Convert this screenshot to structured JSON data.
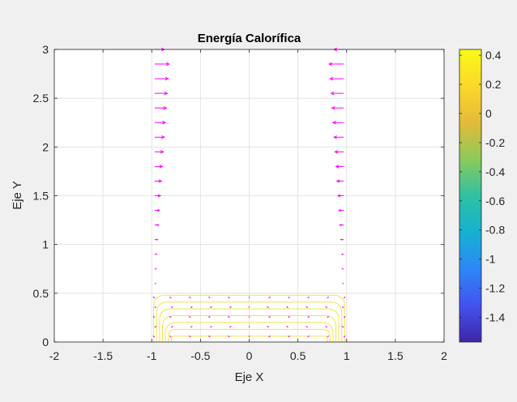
{
  "chart_data": {
    "type": "contour",
    "title": "Energía Calorífica",
    "xlabel": "Eje X",
    "ylabel": "Eje Y",
    "xlim": [
      -2,
      2
    ],
    "ylim": [
      0,
      3
    ],
    "xticks": [
      -2,
      -1.5,
      -1,
      -0.5,
      0,
      0.5,
      1,
      1.5,
      2
    ],
    "xtick_labels": [
      "-2",
      "-1.5",
      "-1",
      "-0.5",
      "0",
      "0.5",
      "1",
      "1.5",
      "2"
    ],
    "yticks": [
      0,
      0.5,
      1,
      1.5,
      2,
      2.5,
      3
    ],
    "ytick_labels": [
      "0",
      "0.5",
      "1",
      "1.5",
      "2",
      "2.5",
      "3"
    ],
    "grid": true,
    "contour_levels": [
      {
        "half_width": 0.98,
        "height": 0.48
      },
      {
        "half_width": 0.95,
        "height": 0.41
      },
      {
        "half_width": 0.92,
        "height": 0.34
      },
      {
        "half_width": 0.89,
        "height": 0.27
      },
      {
        "half_width": 0.86,
        "height": 0.2
      },
      {
        "half_width": 0.83,
        "height": 0.13
      },
      {
        "half_width": 0.8,
        "height": 0.06
      }
    ],
    "contour_color": "#f2e64a",
    "quiver_color": "#ff00ff",
    "quiver": {
      "left_x": -0.97,
      "right_x": 0.97,
      "y_values": [
        3.0,
        2.85,
        2.7,
        2.55,
        2.4,
        2.25,
        2.1,
        1.95,
        1.8,
        1.65,
        1.5,
        1.35,
        1.2,
        1.05,
        0.9,
        0.75,
        0.6
      ],
      "u_values": [
        0.1,
        0.15,
        0.14,
        0.13,
        0.12,
        0.11,
        0.1,
        0.09,
        0.08,
        0.07,
        0.06,
        0.05,
        0.04,
        0.03,
        0.02,
        0.015,
        0.01
      ],
      "bottom_rows_y": [
        0.05,
        0.15,
        0.25,
        0.35,
        0.45
      ],
      "bottom_cols_x": [
        -0.97,
        -0.8,
        -0.6,
        -0.4,
        -0.2,
        0,
        0.2,
        0.4,
        0.6,
        0.8,
        0.97
      ]
    },
    "colorbar": {
      "ticks": [
        0.4,
        0.2,
        0,
        -0.2,
        -0.4,
        -0.6,
        -0.8,
        -1,
        -1.2,
        -1.4
      ],
      "tick_labels": [
        "0.4",
        "0.2",
        "0",
        "-0.2",
        "-0.4",
        "-0.6",
        "-0.8",
        "-1",
        "-1.2",
        "-1.4"
      ],
      "range": [
        -1.57,
        0.44
      ],
      "colormap": [
        "#3e26a8",
        "#4352f0",
        "#2d87f7",
        "#15b1d1",
        "#2fc1a2",
        "#8cca5a",
        "#e4ba3a",
        "#fbd82a",
        "#f9fb15"
      ]
    }
  }
}
